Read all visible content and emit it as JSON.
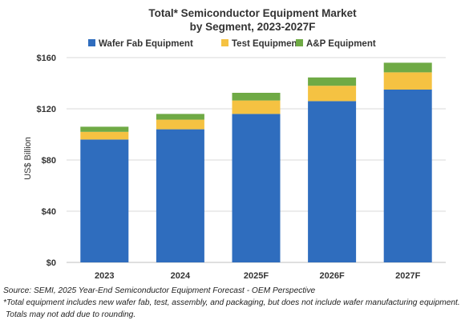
{
  "chart_data": {
    "type": "bar",
    "stacked": true,
    "title": "Total* Semiconductor Equipment Market",
    "subtitle": "by Segment, 2023-2027F",
    "ylabel": "US$ Billion",
    "xlabel": "",
    "ylim": [
      0,
      160
    ],
    "yticks": [
      "$0",
      "$40",
      "$80",
      "$120",
      "$160"
    ],
    "ytick_values": [
      0,
      40,
      80,
      120,
      160
    ],
    "grid": true,
    "legend_position": "top",
    "categories": [
      "2023",
      "2024",
      "2025F",
      "2026F",
      "2027F"
    ],
    "series": [
      {
        "name": "Wafer Fab Equipment",
        "values": [
          96,
          104,
          116,
          126,
          135
        ],
        "color": "#2F6DBE"
      },
      {
        "name": "Test Equipment",
        "values": [
          6,
          7.5,
          10.5,
          12,
          13.5
        ],
        "color": "#F5C242"
      },
      {
        "name": "A&P Equipment",
        "values": [
          4,
          4.5,
          6,
          6.5,
          7.5
        ],
        "color": "#6FAA45"
      }
    ]
  },
  "notes": {
    "source": "Source: SEMI, 2025 Year-End Semiconductor Equipment Forecast - OEM Perspective",
    "footnote1": "*Total equipment includes new wafer fab, test, assembly, and packaging, but does not include wafer manufacturing equipment.",
    "footnote2": "Totals may not add due to rounding."
  }
}
